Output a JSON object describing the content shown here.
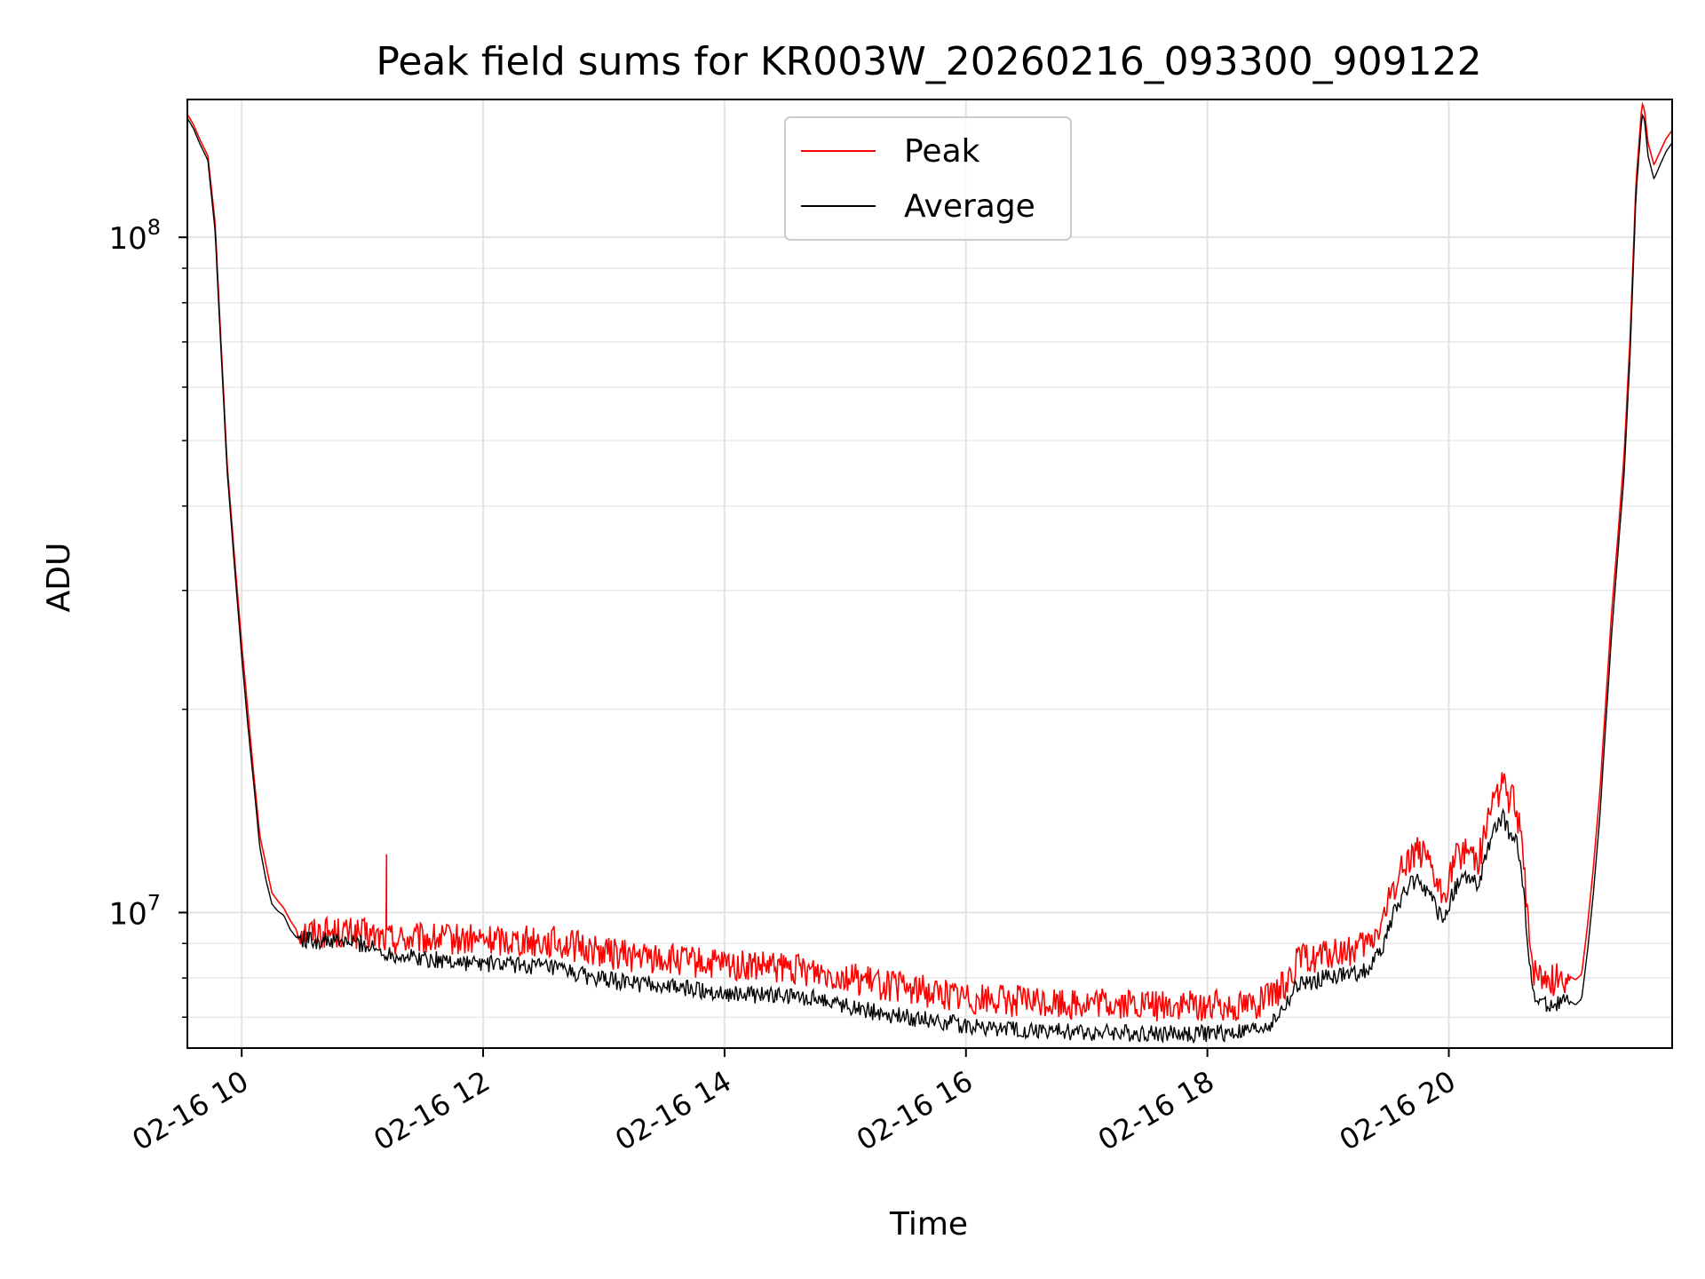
{
  "chart_data": {
    "type": "line",
    "title": "Peak field sums for KR003W_20260216_093300_909122",
    "xlabel": "Time",
    "ylabel": "ADU",
    "yscale": "log",
    "xlim": [
      9.55,
      21.85
    ],
    "ylim": [
      6300000,
      160000000
    ],
    "x_unit": "hours on 02-16",
    "x_ticks": [
      {
        "value": 10,
        "label": "02-16 10"
      },
      {
        "value": 12,
        "label": "02-16 12"
      },
      {
        "value": 14,
        "label": "02-16 14"
      },
      {
        "value": 16,
        "label": "02-16 16"
      },
      {
        "value": 18,
        "label": "02-16 18"
      },
      {
        "value": 20,
        "label": "02-16 20"
      }
    ],
    "y_major_ticks": [
      {
        "value": 10000000,
        "base": "10",
        "exp": "7"
      },
      {
        "value": 100000000,
        "base": "10",
        "exp": "8"
      }
    ],
    "y_minor_ticks": [
      7000000,
      8000000,
      9000000,
      20000000,
      30000000,
      40000000,
      50000000,
      60000000,
      70000000,
      80000000,
      90000000
    ],
    "grid": true,
    "legend_position": "top-center",
    "series": [
      {
        "name": "Peak",
        "color": "#ff0000",
        "noise": 0.11,
        "spikes": [
          [
            11.2,
            12200000
          ]
        ],
        "x": [
          9.55,
          9.6,
          9.65,
          9.72,
          9.78,
          9.82,
          9.88,
          9.95,
          10.0,
          10.05,
          10.1,
          10.15,
          10.2,
          10.25,
          10.3,
          10.35,
          10.4,
          10.45,
          10.5,
          10.6,
          10.8,
          11.0,
          11.15,
          11.3,
          11.5,
          11.8,
          12.0,
          12.2,
          12.4,
          12.6,
          12.8,
          13.0,
          13.3,
          13.6,
          13.9,
          14.2,
          14.5,
          14.8,
          15.0,
          15.2,
          15.5,
          15.8,
          16.0,
          16.3,
          16.6,
          16.9,
          17.2,
          17.5,
          17.8,
          18.0,
          18.2,
          18.4,
          18.55,
          18.65,
          18.75,
          18.9,
          19.05,
          19.2,
          19.35,
          19.45,
          19.55,
          19.65,
          19.75,
          19.85,
          19.95,
          20.05,
          20.15,
          20.25,
          20.35,
          20.45,
          20.5,
          20.55,
          20.6,
          20.7,
          20.85,
          21.0,
          21.05,
          21.1,
          21.15,
          21.2,
          21.25,
          21.3,
          21.35,
          21.4,
          21.45,
          21.5,
          21.55,
          21.6,
          21.62,
          21.65,
          21.7,
          21.75,
          21.8,
          21.85
        ],
        "y": [
          152000000,
          147000000,
          140000000,
          132000000,
          105000000,
          75000000,
          46000000,
          32000000,
          25000000,
          20000000,
          16000000,
          13000000,
          11800000,
          10700000,
          10400000,
          10150000,
          9750000,
          9450000,
          9400000,
          9380000,
          9350000,
          9300000,
          9200000,
          9150000,
          9140000,
          9130000,
          9100000,
          9120000,
          9100000,
          9050000,
          8900000,
          8750000,
          8600000,
          8500000,
          8380000,
          8320000,
          8270000,
          8200000,
          8050000,
          7900000,
          7730000,
          7600000,
          7500000,
          7430000,
          7370000,
          7340000,
          7330000,
          7300000,
          7270000,
          7280000,
          7300000,
          7350000,
          7500000,
          7900000,
          8500000,
          8600000,
          8700000,
          8750000,
          9000000,
          9700000,
          11000000,
          12000000,
          12500000,
          11500000,
          10500000,
          12000000,
          12500000,
          12000000,
          14500000,
          15500000,
          14800000,
          14500000,
          12800000,
          8150000,
          7950000,
          8050000,
          7950000,
          8100000,
          9600000,
          11800000,
          15000000,
          20500000,
          28000000,
          36000000,
          47000000,
          70000000,
          120000000,
          158000000,
          155000000,
          138000000,
          128000000,
          134000000,
          140000000,
          144000000
        ]
      },
      {
        "name": "Average",
        "color": "#000000",
        "noise": 0.06,
        "spikes": [],
        "x": [
          9.55,
          9.6,
          9.65,
          9.72,
          9.78,
          9.82,
          9.88,
          9.95,
          10.0,
          10.05,
          10.1,
          10.15,
          10.2,
          10.25,
          10.3,
          10.35,
          10.4,
          10.45,
          10.5,
          10.6,
          10.8,
          11.0,
          11.15,
          11.3,
          11.5,
          11.8,
          12.0,
          12.2,
          12.4,
          12.6,
          12.8,
          13.0,
          13.3,
          13.6,
          13.9,
          14.2,
          14.5,
          14.8,
          15.0,
          15.2,
          15.5,
          15.8,
          16.0,
          16.3,
          16.6,
          16.9,
          17.2,
          17.5,
          17.8,
          18.0,
          18.2,
          18.4,
          18.55,
          18.65,
          18.75,
          18.9,
          19.05,
          19.2,
          19.35,
          19.45,
          19.55,
          19.65,
          19.75,
          19.85,
          19.95,
          20.05,
          20.15,
          20.25,
          20.35,
          20.45,
          20.5,
          20.55,
          20.6,
          20.7,
          20.85,
          21.0,
          21.05,
          21.1,
          21.15,
          21.2,
          21.25,
          21.3,
          21.35,
          21.4,
          21.45,
          21.5,
          21.55,
          21.6,
          21.62,
          21.65,
          21.7,
          21.75,
          21.8,
          21.85
        ],
        "y": [
          150000000,
          145000000,
          138000000,
          130000000,
          102000000,
          73000000,
          45000000,
          31000000,
          24000000,
          19000000,
          15500000,
          12500000,
          11200000,
          10300000,
          10050000,
          9900000,
          9450000,
          9200000,
          9150000,
          9100000,
          9050000,
          9000000,
          8750000,
          8650000,
          8550000,
          8450000,
          8400000,
          8380000,
          8350000,
          8250000,
          8100000,
          7950000,
          7850000,
          7750000,
          7650000,
          7550000,
          7520000,
          7460000,
          7300000,
          7150000,
          7000000,
          6900000,
          6800000,
          6720000,
          6680000,
          6650000,
          6640000,
          6620000,
          6610000,
          6620000,
          6630000,
          6700000,
          6900000,
          7300000,
          7800000,
          7950000,
          8050000,
          8100000,
          8300000,
          8900000,
          10000000,
          10900000,
          11300000,
          10500000,
          9700000,
          10900000,
          11300000,
          10900000,
          13000000,
          13800000,
          13200000,
          13000000,
          11600000,
          7450000,
          7300000,
          7400000,
          7300000,
          7450000,
          8800000,
          10800000,
          13800000,
          19000000,
          26000000,
          34000000,
          44000000,
          66000000,
          115000000,
          152000000,
          150000000,
          132000000,
          122000000,
          128000000,
          134000000,
          138000000
        ]
      }
    ]
  }
}
